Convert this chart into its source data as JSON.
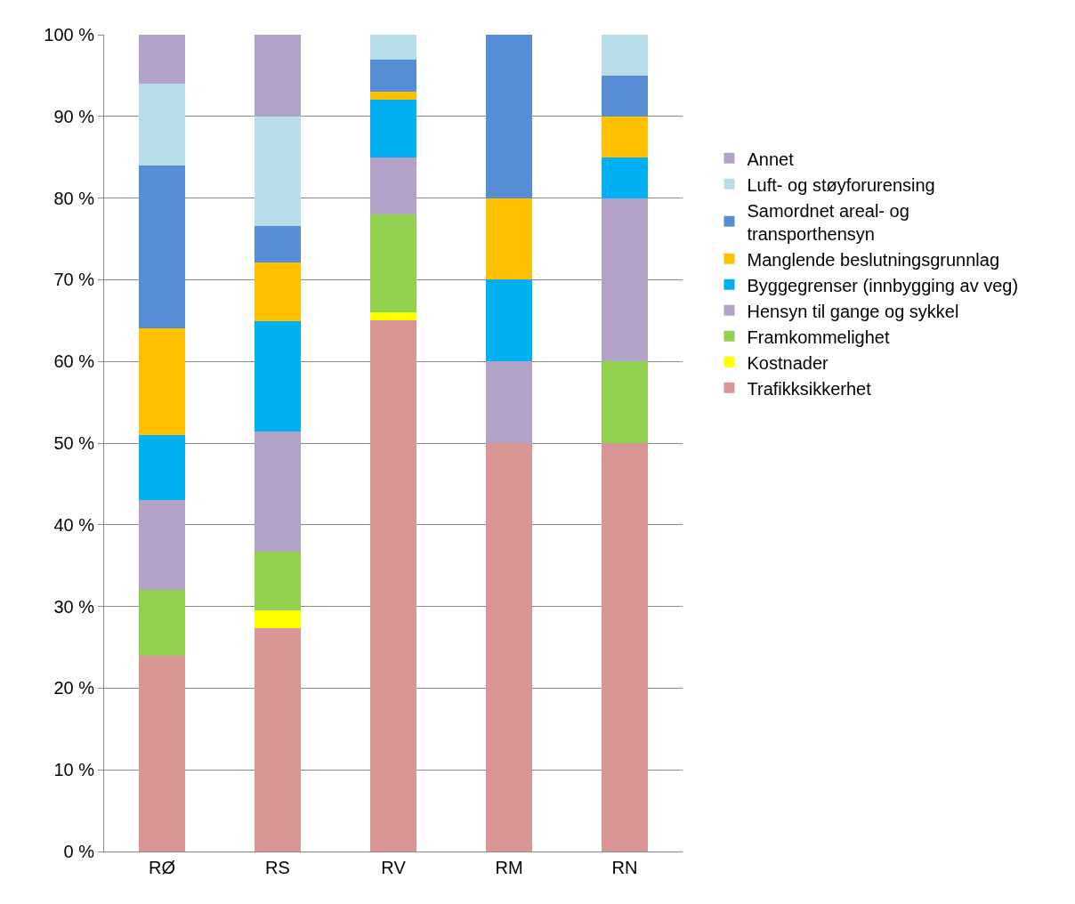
{
  "chart_data": {
    "type": "bar",
    "stacked": true,
    "categories": [
      "RØ",
      "RS",
      "RV",
      "RM",
      "RN"
    ],
    "series": [
      {
        "name": "Trafikksikkerhet",
        "color": "#d99594",
        "values": [
          24,
          27.3,
          65,
          50,
          50
        ]
      },
      {
        "name": "Kostnader",
        "color": "#ffff00",
        "values": [
          0,
          2.2,
          1,
          0,
          0
        ]
      },
      {
        "name": "Framkommelighet",
        "color": "#92d050",
        "values": [
          8,
          7.2,
          12,
          0,
          10
        ]
      },
      {
        "name": "Hensyn til gange og sykkel",
        "color": "#b2a2c7",
        "values": [
          11,
          14.7,
          7,
          10,
          20
        ]
      },
      {
        "name": "Byggegrenser (innbygging av veg)",
        "color": "#00b0f0",
        "values": [
          8,
          13.5,
          7,
          10,
          5
        ]
      },
      {
        "name": "Manglende beslutningsgrunnlag",
        "color": "#ffc000",
        "values": [
          13,
          7.2,
          1,
          10,
          5
        ]
      },
      {
        "name": "Samordnet areal- og transporthensyn",
        "color": "#558ed5",
        "values": [
          20,
          4.5,
          4,
          20,
          5
        ]
      },
      {
        "name": "Luft- og støyforurensing",
        "color": "#b7dee8",
        "values": [
          10,
          13.4,
          3,
          0,
          5
        ]
      },
      {
        "name": "Annet",
        "color": "#b2a2c7",
        "values": [
          6,
          10,
          0,
          0,
          0
        ]
      }
    ],
    "ylim": [
      0,
      100
    ],
    "yticks": [
      {
        "value": 0,
        "label": "0 %"
      },
      {
        "value": 10,
        "label": "10 %"
      },
      {
        "value": 20,
        "label": "20 %"
      },
      {
        "value": 30,
        "label": "30 %"
      },
      {
        "value": 40,
        "label": "40 %"
      },
      {
        "value": 50,
        "label": "50 %"
      },
      {
        "value": 60,
        "label": "60 %"
      },
      {
        "value": 70,
        "label": "70 %"
      },
      {
        "value": 80,
        "label": "80 %"
      },
      {
        "value": 90,
        "label": "90 %"
      },
      {
        "value": 100,
        "label": "100 %"
      }
    ],
    "grid": "y",
    "legend": "right"
  }
}
